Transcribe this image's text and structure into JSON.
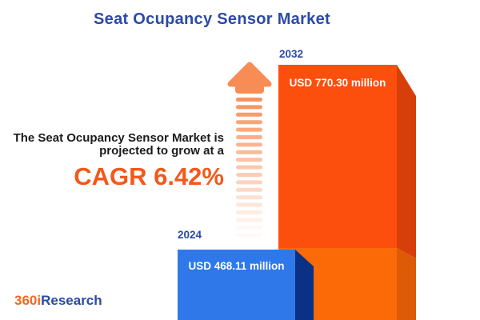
{
  "title": "Seat Ocupancy Sensor Market",
  "annotation": {
    "line1": "The Seat Ocupancy Sensor Market is",
    "line2": "projected to grow at a",
    "cagr": "CAGR 6.42%"
  },
  "bars": {
    "y2024": {
      "year": "2024",
      "value_label": "USD 468.11 million"
    },
    "y2032": {
      "year": "2032",
      "value_label": "USD 770.30 million"
    }
  },
  "logo": {
    "part1": "360i",
    "part2": "Research"
  },
  "colors": {
    "title_blue": "#2B4AA6",
    "text_dark": "#1B1B1B",
    "cagr_orange": "#F4581A",
    "orange_face": "#FC4E0C",
    "orange_face_light": "#FB6A07",
    "orange_side": "#D63F0A",
    "orange_side_light": "#DD5A06",
    "blue_face": "#2E78EA",
    "blue_side": "#0A3186",
    "arrow_orange": "#F78C55",
    "logo_orange": "#F26A21",
    "bar_text": "#FFFFFF"
  },
  "chart_data": {
    "type": "bar",
    "categories": [
      "2024",
      "2032"
    ],
    "values": [
      468.11,
      770.3
    ],
    "value_labels": [
      "USD 468.11 million",
      "USD 770.30 million"
    ],
    "series_unit": "USD million",
    "title": "Seat Ocupancy Sensor Market",
    "xlabel": "",
    "ylabel": "",
    "annotation": "The Seat Ocupancy Sensor Market is projected to grow at a CAGR 6.42%",
    "cagr_percent": 6.42,
    "legend": "none",
    "grid": false,
    "bar_colors": [
      "#2E78EA",
      "#FC4E0C"
    ],
    "style": "3d-extruded bars, growth arrow between annotation and bars"
  }
}
